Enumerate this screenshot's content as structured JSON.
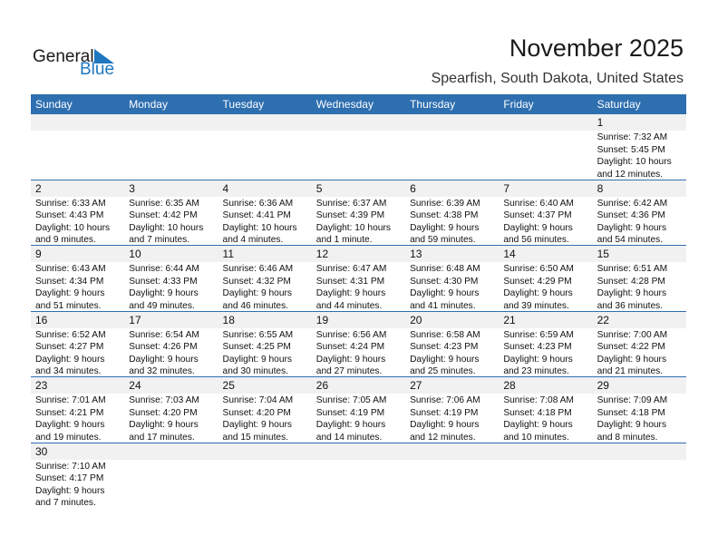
{
  "logo": {
    "word1": "General",
    "word2": "Blue"
  },
  "header": {
    "title": "November 2025",
    "location": "Spearfish, South Dakota, United States"
  },
  "colors": {
    "accent": "#2e6fb0",
    "row_bg": "#f1f1f1"
  },
  "weekdays": [
    "Sunday",
    "Monday",
    "Tuesday",
    "Wednesday",
    "Thursday",
    "Friday",
    "Saturday"
  ],
  "weeks": [
    [
      null,
      null,
      null,
      null,
      null,
      null,
      {
        "day": "1",
        "sunrise": "Sunrise: 7:32 AM",
        "sunset": "Sunset: 5:45 PM",
        "daylight1": "Daylight: 10 hours",
        "daylight2": "and 12 minutes."
      }
    ],
    [
      {
        "day": "2",
        "sunrise": "Sunrise: 6:33 AM",
        "sunset": "Sunset: 4:43 PM",
        "daylight1": "Daylight: 10 hours",
        "daylight2": "and 9 minutes."
      },
      {
        "day": "3",
        "sunrise": "Sunrise: 6:35 AM",
        "sunset": "Sunset: 4:42 PM",
        "daylight1": "Daylight: 10 hours",
        "daylight2": "and 7 minutes."
      },
      {
        "day": "4",
        "sunrise": "Sunrise: 6:36 AM",
        "sunset": "Sunset: 4:41 PM",
        "daylight1": "Daylight: 10 hours",
        "daylight2": "and 4 minutes."
      },
      {
        "day": "5",
        "sunrise": "Sunrise: 6:37 AM",
        "sunset": "Sunset: 4:39 PM",
        "daylight1": "Daylight: 10 hours",
        "daylight2": "and 1 minute."
      },
      {
        "day": "6",
        "sunrise": "Sunrise: 6:39 AM",
        "sunset": "Sunset: 4:38 PM",
        "daylight1": "Daylight: 9 hours",
        "daylight2": "and 59 minutes."
      },
      {
        "day": "7",
        "sunrise": "Sunrise: 6:40 AM",
        "sunset": "Sunset: 4:37 PM",
        "daylight1": "Daylight: 9 hours",
        "daylight2": "and 56 minutes."
      },
      {
        "day": "8",
        "sunrise": "Sunrise: 6:42 AM",
        "sunset": "Sunset: 4:36 PM",
        "daylight1": "Daylight: 9 hours",
        "daylight2": "and 54 minutes."
      }
    ],
    [
      {
        "day": "9",
        "sunrise": "Sunrise: 6:43 AM",
        "sunset": "Sunset: 4:34 PM",
        "daylight1": "Daylight: 9 hours",
        "daylight2": "and 51 minutes."
      },
      {
        "day": "10",
        "sunrise": "Sunrise: 6:44 AM",
        "sunset": "Sunset: 4:33 PM",
        "daylight1": "Daylight: 9 hours",
        "daylight2": "and 49 minutes."
      },
      {
        "day": "11",
        "sunrise": "Sunrise: 6:46 AM",
        "sunset": "Sunset: 4:32 PM",
        "daylight1": "Daylight: 9 hours",
        "daylight2": "and 46 minutes."
      },
      {
        "day": "12",
        "sunrise": "Sunrise: 6:47 AM",
        "sunset": "Sunset: 4:31 PM",
        "daylight1": "Daylight: 9 hours",
        "daylight2": "and 44 minutes."
      },
      {
        "day": "13",
        "sunrise": "Sunrise: 6:48 AM",
        "sunset": "Sunset: 4:30 PM",
        "daylight1": "Daylight: 9 hours",
        "daylight2": "and 41 minutes."
      },
      {
        "day": "14",
        "sunrise": "Sunrise: 6:50 AM",
        "sunset": "Sunset: 4:29 PM",
        "daylight1": "Daylight: 9 hours",
        "daylight2": "and 39 minutes."
      },
      {
        "day": "15",
        "sunrise": "Sunrise: 6:51 AM",
        "sunset": "Sunset: 4:28 PM",
        "daylight1": "Daylight: 9 hours",
        "daylight2": "and 36 minutes."
      }
    ],
    [
      {
        "day": "16",
        "sunrise": "Sunrise: 6:52 AM",
        "sunset": "Sunset: 4:27 PM",
        "daylight1": "Daylight: 9 hours",
        "daylight2": "and 34 minutes."
      },
      {
        "day": "17",
        "sunrise": "Sunrise: 6:54 AM",
        "sunset": "Sunset: 4:26 PM",
        "daylight1": "Daylight: 9 hours",
        "daylight2": "and 32 minutes."
      },
      {
        "day": "18",
        "sunrise": "Sunrise: 6:55 AM",
        "sunset": "Sunset: 4:25 PM",
        "daylight1": "Daylight: 9 hours",
        "daylight2": "and 30 minutes."
      },
      {
        "day": "19",
        "sunrise": "Sunrise: 6:56 AM",
        "sunset": "Sunset: 4:24 PM",
        "daylight1": "Daylight: 9 hours",
        "daylight2": "and 27 minutes."
      },
      {
        "day": "20",
        "sunrise": "Sunrise: 6:58 AM",
        "sunset": "Sunset: 4:23 PM",
        "daylight1": "Daylight: 9 hours",
        "daylight2": "and 25 minutes."
      },
      {
        "day": "21",
        "sunrise": "Sunrise: 6:59 AM",
        "sunset": "Sunset: 4:23 PM",
        "daylight1": "Daylight: 9 hours",
        "daylight2": "and 23 minutes."
      },
      {
        "day": "22",
        "sunrise": "Sunrise: 7:00 AM",
        "sunset": "Sunset: 4:22 PM",
        "daylight1": "Daylight: 9 hours",
        "daylight2": "and 21 minutes."
      }
    ],
    [
      {
        "day": "23",
        "sunrise": "Sunrise: 7:01 AM",
        "sunset": "Sunset: 4:21 PM",
        "daylight1": "Daylight: 9 hours",
        "daylight2": "and 19 minutes."
      },
      {
        "day": "24",
        "sunrise": "Sunrise: 7:03 AM",
        "sunset": "Sunset: 4:20 PM",
        "daylight1": "Daylight: 9 hours",
        "daylight2": "and 17 minutes."
      },
      {
        "day": "25",
        "sunrise": "Sunrise: 7:04 AM",
        "sunset": "Sunset: 4:20 PM",
        "daylight1": "Daylight: 9 hours",
        "daylight2": "and 15 minutes."
      },
      {
        "day": "26",
        "sunrise": "Sunrise: 7:05 AM",
        "sunset": "Sunset: 4:19 PM",
        "daylight1": "Daylight: 9 hours",
        "daylight2": "and 14 minutes."
      },
      {
        "day": "27",
        "sunrise": "Sunrise: 7:06 AM",
        "sunset": "Sunset: 4:19 PM",
        "daylight1": "Daylight: 9 hours",
        "daylight2": "and 12 minutes."
      },
      {
        "day": "28",
        "sunrise": "Sunrise: 7:08 AM",
        "sunset": "Sunset: 4:18 PM",
        "daylight1": "Daylight: 9 hours",
        "daylight2": "and 10 minutes."
      },
      {
        "day": "29",
        "sunrise": "Sunrise: 7:09 AM",
        "sunset": "Sunset: 4:18 PM",
        "daylight1": "Daylight: 9 hours",
        "daylight2": "and 8 minutes."
      }
    ],
    [
      {
        "day": "30",
        "sunrise": "Sunrise: 7:10 AM",
        "sunset": "Sunset: 4:17 PM",
        "daylight1": "Daylight: 9 hours",
        "daylight2": "and 7 minutes."
      },
      null,
      null,
      null,
      null,
      null,
      null
    ]
  ]
}
